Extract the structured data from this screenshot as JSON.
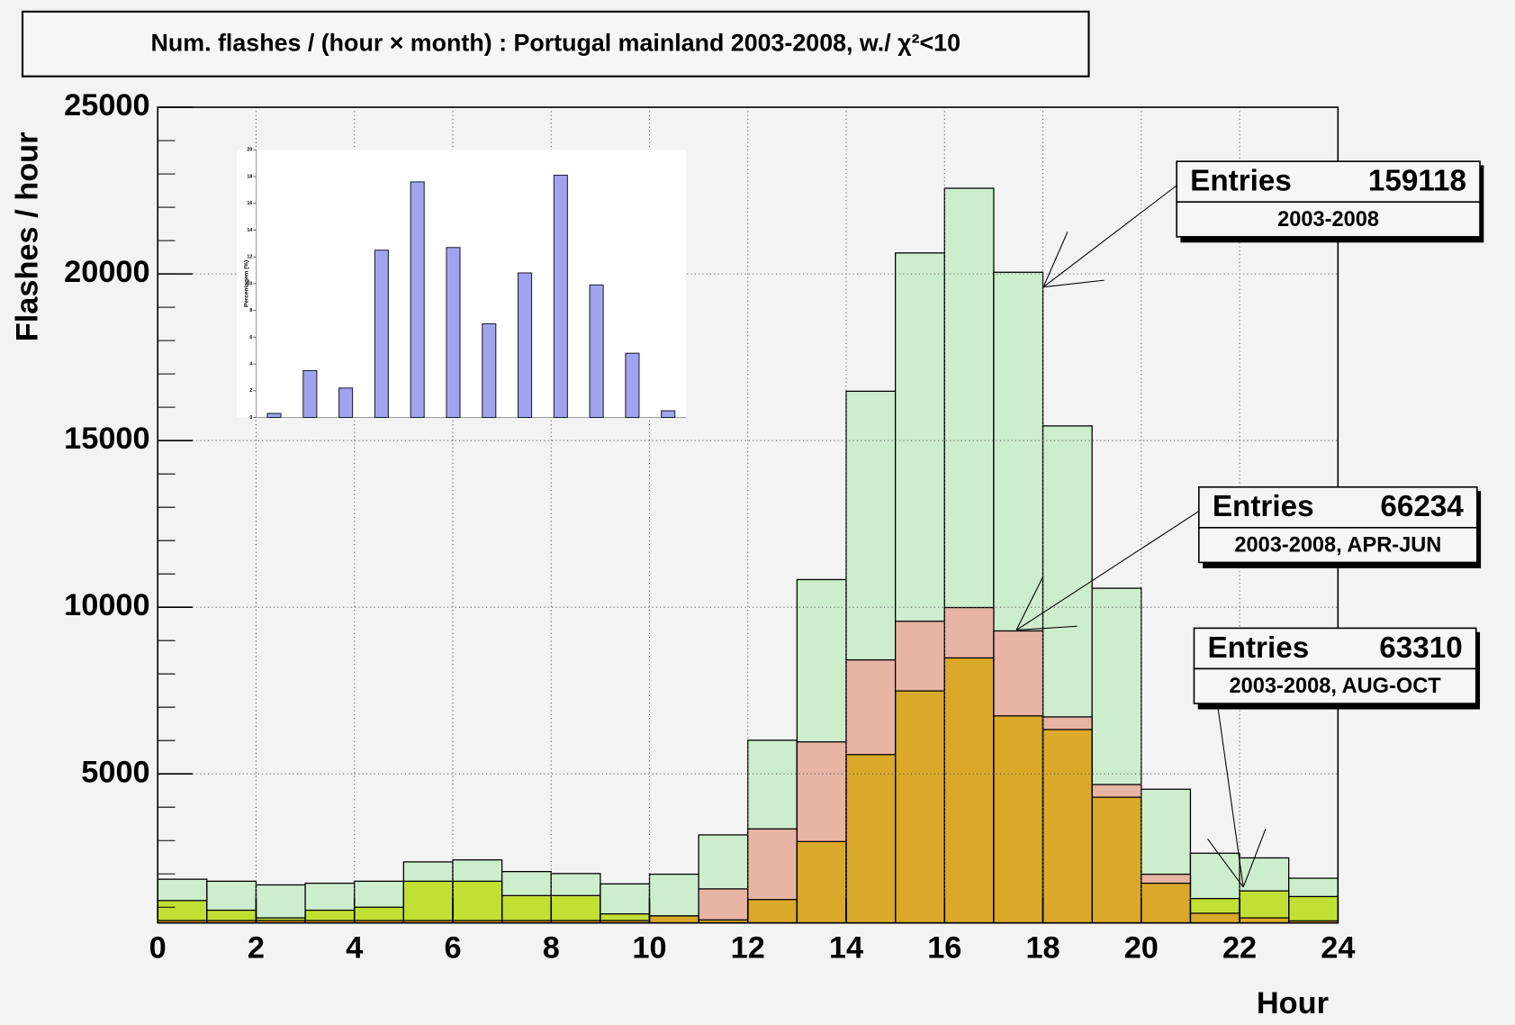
{
  "chart_data": [
    {
      "type": "histogram",
      "title": "Num. flashes / (hour × month) : Portugal mainland 2003-2008, w./ χ²<10",
      "x_label": "Hour",
      "y_label": "Flashes / hour",
      "bins": [
        0,
        1,
        2,
        3,
        4,
        5,
        6,
        7,
        8,
        9,
        10,
        11,
        12,
        13,
        14,
        15,
        16,
        17,
        18,
        19,
        20,
        21,
        22,
        23,
        24
      ],
      "xlim": [
        0,
        24
      ],
      "xticks": [
        0,
        2,
        4,
        6,
        8,
        10,
        12,
        14,
        16,
        18,
        20,
        22,
        24
      ],
      "ylim": [
        530,
        25000
      ],
      "yticks": [
        5000,
        10000,
        15000,
        20000,
        25000
      ],
      "grid": true,
      "series": [
        {
          "name": "2003-2008",
          "color": "#cdeecd",
          "values": [
            1840,
            1780,
            1670,
            1720,
            1780,
            2360,
            2420,
            2070,
            2010,
            1700,
            1990,
            3170,
            6010,
            10830,
            16480,
            20630,
            22570,
            20050,
            15440,
            10570,
            4540,
            2620,
            2480,
            1870
          ]
        },
        {
          "name": "2003-2008, APR-JUN",
          "color": "#e8b4a4",
          "values": [
            600,
            600,
            600,
            600,
            600,
            600,
            600,
            600,
            600,
            600,
            740,
            1550,
            3350,
            5960,
            8420,
            9580,
            9990,
            9290,
            6710,
            4680,
            1990,
            820,
            680,
            590
          ]
        },
        {
          "name": "2003-2008, AUG-OCT",
          "color": "#f0f040",
          "values": [
            1200,
            910,
            680,
            910,
            1000,
            1780,
            1780,
            1350,
            1350,
            800,
            740,
            620,
            1230,
            2970,
            5580,
            7490,
            8480,
            6740,
            6330,
            4300,
            1720,
            1260,
            1490,
            1320
          ]
        }
      ],
      "stats_boxes": [
        {
          "label": "Entries",
          "value": 159118,
          "subtitle": "2003-2008"
        },
        {
          "label": "Entries",
          "value": 66234,
          "subtitle": "2003-2008, APR-JUN"
        },
        {
          "label": "Entries",
          "value": 63310,
          "subtitle": "2003-2008, AUG-OCT"
        }
      ]
    },
    {
      "type": "bar",
      "y_label": "Percentagem (%)",
      "color": "#a0a4f0",
      "values": [
        0.3,
        3.5,
        2.2,
        12.5,
        17.6,
        12.7,
        7.0,
        10.8,
        18.1,
        9.9,
        4.8,
        0.5
      ],
      "ylim": [
        0,
        20
      ],
      "yticks": [
        0,
        2,
        4,
        6,
        8,
        10,
        12,
        14,
        16,
        18,
        20
      ]
    }
  ]
}
